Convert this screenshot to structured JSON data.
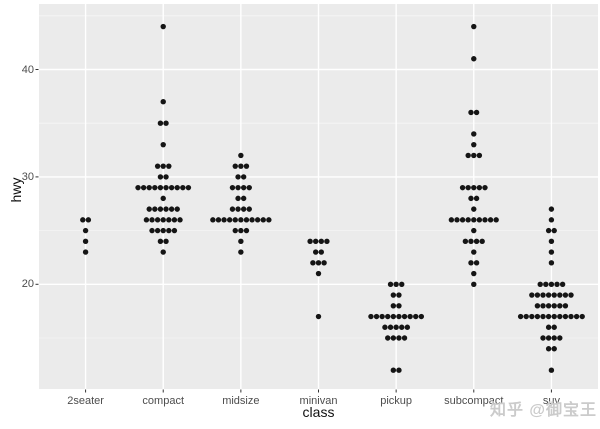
{
  "watermark": {
    "text": "知乎 @御宝王"
  },
  "axes": {
    "y_title": "hwy",
    "x_title": "class",
    "y_ticks": [
      20,
      30,
      40
    ],
    "y_minor_ticks": [
      15,
      25,
      35,
      45
    ],
    "x_categories": [
      "2seater",
      "compact",
      "midsize",
      "minivan",
      "pickup",
      "subcompact",
      "suv"
    ]
  },
  "colors": {
    "page_bg": "#ffffff",
    "panel_bg": "#ebebeb",
    "grid_major": "#ffffff",
    "grid_minor": "#f5f5f5",
    "dot": "#151515",
    "tick_mark": "#333333",
    "tick_text": "#4d4d4d",
    "axis_title_text": "#111111",
    "watermark_text": "#cbcbcb"
  },
  "chart_data": {
    "type": "dotplot",
    "title": "",
    "xlabel": "class",
    "ylabel": "hwy",
    "ylim": [
      10.5,
      45.5
    ],
    "y_major_gridlines": [
      20,
      30,
      40
    ],
    "y_minor_gridlines": [
      15,
      25,
      35,
      45
    ],
    "grid": "on",
    "legend": "none",
    "categories": [
      "2seater",
      "compact",
      "midsize",
      "minivan",
      "pickup",
      "subcompact",
      "suv"
    ],
    "series": [
      {
        "name": "2seater",
        "points": [
          {
            "hwy": 26,
            "n": 2
          },
          {
            "hwy": 25,
            "n": 1
          },
          {
            "hwy": 24,
            "n": 1
          },
          {
            "hwy": 23,
            "n": 1
          }
        ]
      },
      {
        "name": "compact",
        "points": [
          {
            "hwy": 44,
            "n": 1
          },
          {
            "hwy": 37,
            "n": 1
          },
          {
            "hwy": 35,
            "n": 2
          },
          {
            "hwy": 33,
            "n": 1
          },
          {
            "hwy": 31,
            "n": 3
          },
          {
            "hwy": 30,
            "n": 2
          },
          {
            "hwy": 29,
            "n": 10
          },
          {
            "hwy": 28,
            "n": 1
          },
          {
            "hwy": 27,
            "n": 6
          },
          {
            "hwy": 26,
            "n": 7
          },
          {
            "hwy": 25,
            "n": 5
          },
          {
            "hwy": 24,
            "n": 2
          },
          {
            "hwy": 23,
            "n": 1
          }
        ]
      },
      {
        "name": "midsize",
        "points": [
          {
            "hwy": 32,
            "n": 1
          },
          {
            "hwy": 31,
            "n": 3
          },
          {
            "hwy": 30,
            "n": 2
          },
          {
            "hwy": 29,
            "n": 4
          },
          {
            "hwy": 28,
            "n": 2
          },
          {
            "hwy": 27,
            "n": 4
          },
          {
            "hwy": 26,
            "n": 11
          },
          {
            "hwy": 25,
            "n": 3
          },
          {
            "hwy": 24,
            "n": 1
          },
          {
            "hwy": 23,
            "n": 1
          }
        ]
      },
      {
        "name": "minivan",
        "points": [
          {
            "hwy": 24,
            "n": 4
          },
          {
            "hwy": 23,
            "n": 2
          },
          {
            "hwy": 22,
            "n": 3
          },
          {
            "hwy": 21,
            "n": 1
          },
          {
            "hwy": 17,
            "n": 1
          }
        ]
      },
      {
        "name": "pickup",
        "points": [
          {
            "hwy": 20,
            "n": 3
          },
          {
            "hwy": 19,
            "n": 2
          },
          {
            "hwy": 18,
            "n": 2
          },
          {
            "hwy": 17,
            "n": 10
          },
          {
            "hwy": 16,
            "n": 5
          },
          {
            "hwy": 15,
            "n": 4
          },
          {
            "hwy": 12,
            "n": 2
          }
        ]
      },
      {
        "name": "subcompact",
        "points": [
          {
            "hwy": 44,
            "n": 1
          },
          {
            "hwy": 41,
            "n": 1
          },
          {
            "hwy": 36,
            "n": 2
          },
          {
            "hwy": 34,
            "n": 1
          },
          {
            "hwy": 33,
            "n": 1
          },
          {
            "hwy": 32,
            "n": 3
          },
          {
            "hwy": 29,
            "n": 5
          },
          {
            "hwy": 28,
            "n": 2
          },
          {
            "hwy": 27,
            "n": 1
          },
          {
            "hwy": 26,
            "n": 9
          },
          {
            "hwy": 25,
            "n": 1
          },
          {
            "hwy": 24,
            "n": 4
          },
          {
            "hwy": 23,
            "n": 1
          },
          {
            "hwy": 22,
            "n": 2
          },
          {
            "hwy": 21,
            "n": 1
          },
          {
            "hwy": 20,
            "n": 1
          }
        ]
      },
      {
        "name": "suv",
        "points": [
          {
            "hwy": 27,
            "n": 1
          },
          {
            "hwy": 26,
            "n": 1
          },
          {
            "hwy": 25,
            "n": 2
          },
          {
            "hwy": 24,
            "n": 1
          },
          {
            "hwy": 23,
            "n": 1
          },
          {
            "hwy": 22,
            "n": 1
          },
          {
            "hwy": 20,
            "n": 5
          },
          {
            "hwy": 19,
            "n": 8
          },
          {
            "hwy": 18,
            "n": 6
          },
          {
            "hwy": 17,
            "n": 12
          },
          {
            "hwy": 16,
            "n": 2
          },
          {
            "hwy": 15,
            "n": 4
          },
          {
            "hwy": 14,
            "n": 2
          },
          {
            "hwy": 12,
            "n": 1
          }
        ]
      }
    ]
  }
}
